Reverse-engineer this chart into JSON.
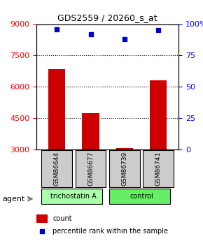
{
  "title": "GDS2559 / 20260_s_at",
  "samples": [
    "GSM86644",
    "GSM86677",
    "GSM86739",
    "GSM86741"
  ],
  "counts": [
    6850,
    4750,
    3050,
    6300
  ],
  "percentiles": [
    96,
    92,
    88,
    95
  ],
  "ylim_left": [
    3000,
    9000
  ],
  "ylim_right": [
    0,
    100
  ],
  "yticks_left": [
    3000,
    4500,
    6000,
    7500,
    9000
  ],
  "yticks_right": [
    0,
    25,
    50,
    75,
    100
  ],
  "ytick_labels_right": [
    "0",
    "25",
    "50",
    "75",
    "100%"
  ],
  "bar_color": "#cc0000",
  "dot_color": "#0000cc",
  "bar_width": 0.5,
  "groups": [
    {
      "label": "trichostatin A",
      "samples": [
        0,
        1
      ],
      "color": "#aaffaa"
    },
    {
      "label": "control",
      "samples": [
        2,
        3
      ],
      "color": "#66ee66"
    }
  ],
  "agent_label": "agent",
  "legend_count_label": "count",
  "legend_pct_label": "percentile rank within the sample",
  "grid_color": "#000000",
  "background_color": "#ffffff",
  "sample_box_color": "#cccccc",
  "sample_text_color": "#000000"
}
